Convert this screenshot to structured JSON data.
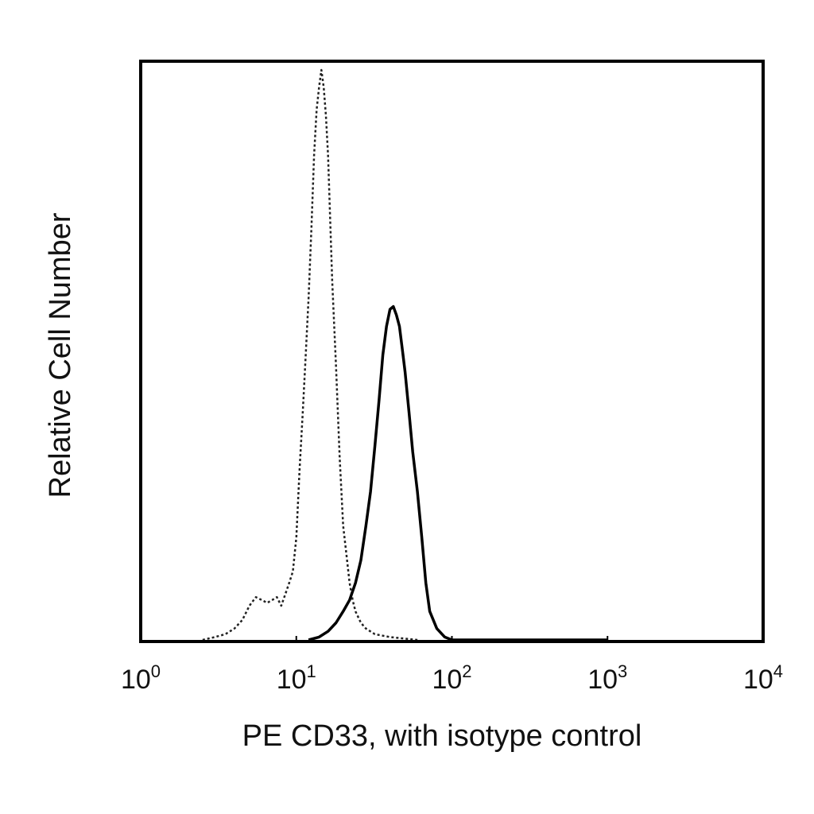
{
  "chart_data": {
    "type": "line",
    "title": "",
    "xlabel": "PE CD33, with isotype control",
    "ylabel": "Relative Cell Number",
    "x_scale": "log",
    "xlim": [
      1,
      10000
    ],
    "ylim": [
      0,
      1
    ],
    "grid": false,
    "legend": "none",
    "x_ticks": [
      {
        "base": "10",
        "exp": "0",
        "value": 1
      },
      {
        "base": "10",
        "exp": "1",
        "value": 10
      },
      {
        "base": "10",
        "exp": "2",
        "value": 100
      },
      {
        "base": "10",
        "exp": "3",
        "value": 1000
      },
      {
        "base": "10",
        "exp": "4",
        "value": 10000
      }
    ],
    "series": [
      {
        "style": "dotted",
        "color": "#222222",
        "points": [
          [
            2.5,
            0.0
          ],
          [
            3.0,
            0.005
          ],
          [
            3.5,
            0.01
          ],
          [
            4.0,
            0.02
          ],
          [
            4.5,
            0.035
          ],
          [
            5.0,
            0.06
          ],
          [
            5.5,
            0.075
          ],
          [
            6.0,
            0.07
          ],
          [
            6.5,
            0.065
          ],
          [
            7.0,
            0.07
          ],
          [
            7.5,
            0.075
          ],
          [
            8.0,
            0.06
          ],
          [
            8.5,
            0.08
          ],
          [
            9.0,
            0.1
          ],
          [
            9.5,
            0.12
          ],
          [
            10.0,
            0.18
          ],
          [
            10.5,
            0.3
          ],
          [
            11.0,
            0.4
          ],
          [
            11.5,
            0.5
          ],
          [
            12.0,
            0.6
          ],
          [
            12.5,
            0.72
          ],
          [
            13.0,
            0.85
          ],
          [
            13.5,
            0.93
          ],
          [
            14.0,
            0.97
          ],
          [
            14.5,
            1.0
          ],
          [
            15.0,
            0.97
          ],
          [
            15.5,
            0.92
          ],
          [
            16.0,
            0.85
          ],
          [
            16.5,
            0.74
          ],
          [
            17.0,
            0.63
          ],
          [
            18.0,
            0.48
          ],
          [
            19.0,
            0.32
          ],
          [
            20.0,
            0.2
          ],
          [
            21.0,
            0.15
          ],
          [
            22.0,
            0.1
          ],
          [
            23.0,
            0.07
          ],
          [
            24.0,
            0.05
          ],
          [
            26.0,
            0.03
          ],
          [
            28.0,
            0.02
          ],
          [
            32.0,
            0.01
          ],
          [
            40.0,
            0.005
          ],
          [
            60.0,
            0.0
          ]
        ]
      },
      {
        "style": "solid",
        "color": "#000000",
        "points": [
          [
            12.0,
            0.0
          ],
          [
            14.0,
            0.005
          ],
          [
            16.0,
            0.015
          ],
          [
            18.0,
            0.03
          ],
          [
            20.0,
            0.05
          ],
          [
            22.0,
            0.07
          ],
          [
            24.0,
            0.1
          ],
          [
            26.0,
            0.14
          ],
          [
            28.0,
            0.2
          ],
          [
            30.0,
            0.26
          ],
          [
            32.0,
            0.34
          ],
          [
            34.0,
            0.42
          ],
          [
            36.0,
            0.5
          ],
          [
            38.0,
            0.55
          ],
          [
            40.0,
            0.58
          ],
          [
            42.0,
            0.585
          ],
          [
            44.0,
            0.57
          ],
          [
            46.0,
            0.55
          ],
          [
            48.0,
            0.51
          ],
          [
            50.0,
            0.47
          ],
          [
            53.0,
            0.4
          ],
          [
            56.0,
            0.33
          ],
          [
            60.0,
            0.26
          ],
          [
            64.0,
            0.18
          ],
          [
            68.0,
            0.1
          ],
          [
            72.0,
            0.05
          ],
          [
            80.0,
            0.02
          ],
          [
            90.0,
            0.005
          ],
          [
            100.0,
            0.0
          ],
          [
            200.0,
            0.0
          ],
          [
            400.0,
            0.0
          ],
          [
            1000.0,
            0.0
          ]
        ]
      }
    ]
  }
}
